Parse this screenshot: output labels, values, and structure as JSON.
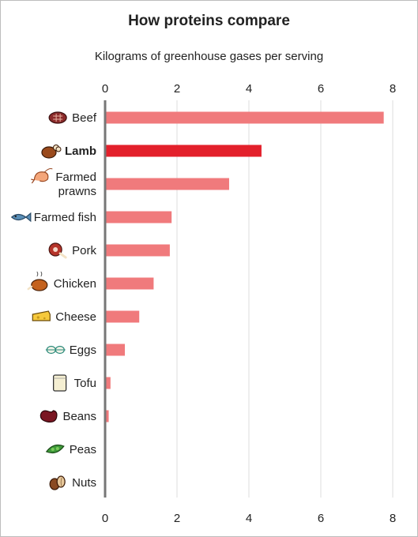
{
  "chart_data": {
    "type": "bar",
    "orientation": "horizontal",
    "title": "How proteins compare",
    "subtitle": "Kilograms of greenhouse gases per serving",
    "xlim": [
      0,
      8
    ],
    "xticks": [
      0,
      2,
      4,
      6,
      8
    ],
    "grid": true,
    "categories": [
      {
        "label": [
          "Beef"
        ],
        "value": 7.75,
        "highlight": false,
        "icon": "steak-icon"
      },
      {
        "label": [
          "Lamb"
        ],
        "value": 4.35,
        "highlight": true,
        "icon": "lamb-roast-icon"
      },
      {
        "label": [
          "Farmed",
          "prawns"
        ],
        "value": 3.45,
        "highlight": false,
        "icon": "prawn-icon"
      },
      {
        "label": [
          "Farmed fish"
        ],
        "value": 1.85,
        "highlight": false,
        "icon": "fish-icon"
      },
      {
        "label": [
          "Pork"
        ],
        "value": 1.8,
        "highlight": false,
        "icon": "ham-icon"
      },
      {
        "label": [
          "Chicken"
        ],
        "value": 1.35,
        "highlight": false,
        "icon": "roast-chicken-icon"
      },
      {
        "label": [
          "Cheese"
        ],
        "value": 0.95,
        "highlight": false,
        "icon": "cheese-icon"
      },
      {
        "label": [
          "Eggs"
        ],
        "value": 0.55,
        "highlight": false,
        "icon": "eggs-icon"
      },
      {
        "label": [
          "Tofu"
        ],
        "value": 0.15,
        "highlight": false,
        "icon": "tofu-icon"
      },
      {
        "label": [
          "Beans"
        ],
        "value": 0.1,
        "highlight": false,
        "icon": "bean-icon"
      },
      {
        "label": [
          "Peas"
        ],
        "value": 0.0,
        "highlight": false,
        "icon": "pea-pod-icon"
      },
      {
        "label": [
          "Nuts"
        ],
        "value": 0.0,
        "highlight": false,
        "icon": "nuts-icon"
      }
    ],
    "colors": {
      "bar": "#f07a7c",
      "highlight": "#e3202b",
      "axis": "#777777",
      "grid": "#dddddd"
    }
  }
}
